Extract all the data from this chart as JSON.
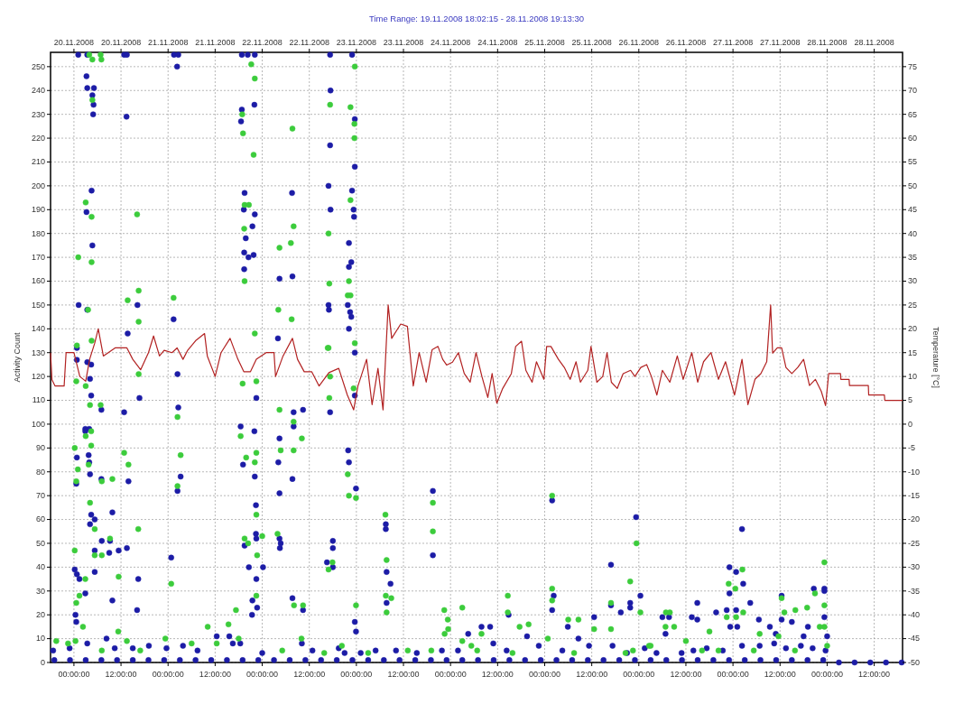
{
  "chart_data": {
    "type": "scatter",
    "title": "Time Range: 19.11.2008 18:02:15 - 28.11.2008 19:13:30",
    "ylabel": "Activity Count",
    "y2label": "Temperature [°C]",
    "xlim": [
      "2008-11-19T18:02:15",
      "2008-11-28T19:13:30"
    ],
    "xticks": [
      {
        "value": "2008-11-20T00:00",
        "label": "00:00:00"
      },
      {
        "value": "2008-11-20T12:00",
        "label": "12:00:00"
      },
      {
        "value": "2008-11-21T00:00",
        "label": "00:00:00"
      },
      {
        "value": "2008-11-21T12:00",
        "label": "12:00:00"
      },
      {
        "value": "2008-11-22T00:00",
        "label": "00:00:00"
      },
      {
        "value": "2008-11-22T12:00",
        "label": "12:00:00"
      },
      {
        "value": "2008-11-23T00:00",
        "label": "00:00:00"
      },
      {
        "value": "2008-11-23T12:00",
        "label": "12:00:00"
      },
      {
        "value": "2008-11-24T00:00",
        "label": "00:00:00"
      },
      {
        "value": "2008-11-24T12:00",
        "label": "12:00:00"
      },
      {
        "value": "2008-11-25T00:00",
        "label": "00:00:00"
      },
      {
        "value": "2008-11-25T12:00",
        "label": "12:00:00"
      },
      {
        "value": "2008-11-26T00:00",
        "label": "00:00:00"
      },
      {
        "value": "2008-11-26T12:00",
        "label": "12:00:00"
      },
      {
        "value": "2008-11-27T00:00",
        "label": "00:00:00"
      },
      {
        "value": "2008-11-27T12:00",
        "label": "12:00:00"
      },
      {
        "value": "2008-11-28T00:00",
        "label": "00:00:00"
      },
      {
        "value": "2008-11-28T12:00",
        "label": "12:00:00"
      }
    ],
    "x2lim": [
      "2008-11-19T18:02:15",
      "2008-11-28T19:13:30"
    ],
    "x2ticks": [
      {
        "value": "2008-11-20T00:00",
        "label": "20.11.2008"
      },
      {
        "value": "2008-11-20T12:00",
        "label": "20.11.2008"
      },
      {
        "value": "2008-11-21T00:00",
        "label": "21.11.2008"
      },
      {
        "value": "2008-11-21T12:00",
        "label": "21.11.2008"
      },
      {
        "value": "2008-11-22T00:00",
        "label": "22.11.2008"
      },
      {
        "value": "2008-11-22T12:00",
        "label": "22.11.2008"
      },
      {
        "value": "2008-11-23T00:00",
        "label": "23.11.2008"
      },
      {
        "value": "2008-11-23T12:00",
        "label": "23.11.2008"
      },
      {
        "value": "2008-11-24T00:00",
        "label": "24.11.2008"
      },
      {
        "value": "2008-11-24T12:00",
        "label": "24.11.2008"
      },
      {
        "value": "2008-11-25T00:00",
        "label": "25.11.2008"
      },
      {
        "value": "2008-11-25T12:00",
        "label": "25.11.2008"
      },
      {
        "value": "2008-11-26T00:00",
        "label": "26.11.2008"
      },
      {
        "value": "2008-11-26T12:00",
        "label": "26.11.2008"
      },
      {
        "value": "2008-11-27T00:00",
        "label": "27.11.2008"
      },
      {
        "value": "2008-11-27T12:00",
        "label": "27.11.2008"
      },
      {
        "value": "2008-11-28T00:00",
        "label": "28.11.2008"
      },
      {
        "value": "2008-11-28T12:00",
        "label": "28.11.2008"
      }
    ],
    "ylim": [
      0,
      256
    ],
    "yticks": [
      0,
      10,
      20,
      30,
      40,
      50,
      60,
      70,
      80,
      90,
      100,
      110,
      120,
      130,
      140,
      150,
      160,
      170,
      180,
      190,
      200,
      210,
      220,
      230,
      240,
      250
    ],
    "y2lim": [
      -50,
      78
    ],
    "y2ticks": [
      -50,
      -45,
      -40,
      -35,
      -30,
      -25,
      -20,
      -15,
      -10,
      -5,
      0,
      5,
      10,
      15,
      20,
      25,
      30,
      35,
      40,
      45,
      50,
      55,
      60,
      65,
      70,
      75
    ],
    "grid": true,
    "marker": "circle",
    "line_style": "solid",
    "series": [
      {
        "color": "#1c1ca6",
        "x": [
          "2008-11-20T01:06",
          "2008-11-20T03:24",
          "2008-11-20T12:48",
          "2008-11-20T13:30",
          "2008-11-21T01:30",
          "2008-11-21T02:36",
          "2008-11-21T18:48",
          "2008-11-21T20:18",
          "2008-11-21T22:06",
          "2008-11-22T17:18",
          "2008-11-22T22:54",
          "2008-11-21T02:18",
          "2008-11-20T03:12",
          "2008-11-20T03:24",
          "2008-11-20T05:06",
          "2008-11-20T04:42",
          "2008-11-20T05:00",
          "2008-11-20T04:54",
          "2008-11-20T13:24",
          "2008-11-21T18:48",
          "2008-11-21T18:36",
          "2008-11-21T22:00",
          "2008-11-22T17:24",
          "2008-11-22T17:18",
          "2008-11-22T23:36",
          "2008-11-22T23:36",
          "2008-11-20T04:30",
          "2008-11-20T03:12",
          "2008-11-21T19:30",
          "2008-11-21T19:18",
          "2008-11-21T22:06",
          "2008-11-21T21:30",
          "2008-11-21T19:48",
          "2008-11-21T19:24",
          "2008-11-21T20:30",
          "2008-11-21T21:48",
          "2008-11-21T19:24",
          "2008-11-20T04:42",
          "2008-11-22T16:54",
          "2008-11-22T17:24",
          "2008-11-22T22:54",
          "2008-11-22T23:18",
          "2008-11-22T23:24",
          "2008-11-22T22:06",
          "2008-11-22T22:06",
          "2008-11-22T22:42",
          "2008-11-22T07:36",
          "2008-11-22T04:24",
          "2008-11-22T07:42",
          "2008-11-20T01:12",
          "2008-11-20T03:24",
          "2008-11-20T16:12",
          "2008-11-21T01:24",
          "2008-11-20T13:42",
          "2008-11-22T16:54",
          "2008-11-22T17:00",
          "2008-11-22T21:48",
          "2008-11-22T22:24",
          "2008-11-22T22:42",
          "2008-11-22T22:06",
          "2008-11-22T04:00",
          "2008-11-20T00:45",
          "2008-11-20T00:45",
          "2008-11-20T03:24",
          "2008-11-20T04:24",
          "2008-11-20T04:06",
          "2008-11-20T04:24",
          "2008-11-20T02:54",
          "2008-11-20T02:54",
          "2008-11-20T03:54",
          "2008-11-20T00:45",
          "2008-11-20T03:45",
          "2008-11-20T03:54",
          "2008-11-20T04:06",
          "2008-11-20T00:36",
          "2008-11-20T07:00",
          "2008-11-20T07:00",
          "2008-11-20T12:48",
          "2008-11-20T13:54",
          "2008-11-20T16:42",
          "2008-11-21T02:24",
          "2008-11-21T02:36",
          "2008-11-21T03:12",
          "2008-11-21T02:24",
          "2008-11-21T18:30",
          "2008-11-21T22:00",
          "2008-11-21T22:06",
          "2008-11-21T19:06",
          "2008-11-21T22:30",
          "2008-11-22T04:24",
          "2008-11-22T04:06",
          "2008-11-22T04:24",
          "2008-11-22T08:00",
          "2008-11-22T08:00",
          "2008-11-22T07:42",
          "2008-11-22T10:24",
          "2008-11-22T17:18",
          "2008-11-22T21:54",
          "2008-11-22T22:06",
          "2008-11-22T23:54",
          "2008-11-22T23:36",
          "2008-11-22T23:36",
          "2008-11-20T00:12",
          "2008-11-20T00:45",
          "2008-11-20T01:24",
          "2008-11-20T00:24",
          "2008-11-20T00:36",
          "2008-11-20T02:54",
          "2008-11-20T04:24",
          "2008-11-20T05:18",
          "2008-11-20T04:06",
          "2008-11-20T05:18",
          "2008-11-20T07:06",
          "2008-11-20T09:12",
          "2008-11-20T09:48",
          "2008-11-20T09:00",
          "2008-11-20T11:24",
          "2008-11-20T13:30",
          "2008-11-20T05:18",
          "2008-11-20T09:48",
          "2008-11-20T16:24",
          "2008-11-20T16:06",
          "2008-11-21T00:48",
          "2008-11-21T20:36",
          "2008-11-21T21:30",
          "2008-11-21T21:24",
          "2008-11-21T22:42",
          "2008-11-21T22:30",
          "2008-11-21T22:24",
          "2008-11-21T22:24",
          "2008-11-21T22:30",
          "2008-11-22T00:12",
          "2008-11-21T19:30",
          "2008-11-22T04:24",
          "2008-11-22T04:42",
          "2008-11-22T04:30",
          "2008-11-22T07:42",
          "2008-11-22T10:24",
          "2008-11-22T18:00",
          "2008-11-22T18:00",
          "2008-11-22T16:30",
          "2008-11-22T18:00",
          "2008-11-22T23:36",
          "2008-11-22T23:54",
          "2008-11-23T07:30",
          "2008-11-23T07:30",
          "2008-11-23T07:42",
          "2008-11-23T08:42",
          "2008-11-23T07:42",
          "2008-11-23T19:30",
          "2008-11-23T19:30",
          "2008-11-25T01:54",
          "2008-11-25T23:18",
          "2008-11-25T16:54",
          "2008-11-26T00:24",
          "2008-11-25T01:54",
          "2008-11-25T02:18",
          "2008-11-25T16:54",
          "2008-11-25T19:24",
          "2008-11-25T21:48",
          "2008-11-25T21:48",
          "2008-11-25T12:36",
          "2008-11-25T05:54",
          "2008-11-24T14:48",
          "2008-11-24T10:06",
          "2008-11-24T07:54",
          "2008-11-24T04:30",
          "2008-11-24T19:30",
          "2008-11-25T08:36",
          "2008-11-27T02:18",
          "2008-11-26T23:06",
          "2008-11-27T00:48",
          "2008-11-27T02:36",
          "2008-11-26T23:06",
          "2008-11-27T20:36",
          "2008-11-27T23:18",
          "2008-11-27T23:18",
          "2008-11-27T12:24",
          "2008-11-27T04:24",
          "2008-11-26T14:54",
          "2008-11-26T06:00",
          "2008-11-26T07:42",
          "2008-11-26T13:30",
          "2008-11-26T14:54",
          "2008-11-26T19:42",
          "2008-11-26T22:24",
          "2008-11-27T00:48",
          "2008-11-27T06:36",
          "2008-11-27T12:24",
          "2008-11-27T23:18",
          "2008-11-26T06:48",
          "2008-11-26T23:18",
          "2008-11-27T01:06",
          "2008-11-27T09:24",
          "2008-11-27T15:00",
          "2008-11-27T19:06",
          "2008-11-27T10:54",
          "2008-11-28T00:00",
          "2008-11-27T18:00",
          "2008-11-19T18:42",
          "2008-11-19T22:54",
          "2008-11-20T03:24",
          "2008-11-20T08:18",
          "2008-11-20T10:24",
          "2008-11-20T15:00",
          "2008-11-20T19:06",
          "2008-11-20T23:36",
          "2008-11-21T03:48",
          "2008-11-21T07:30",
          "2008-11-21T12:24",
          "2008-11-21T15:36",
          "2008-11-21T16:30",
          "2008-11-21T18:24",
          "2008-11-22T00:00",
          "2008-11-22T10:06",
          "2008-11-22T12:48",
          "2008-11-22T19:30",
          "2008-11-22T21:00",
          "2008-11-23T01:06",
          "2008-11-23T04:54",
          "2008-11-23T10:06",
          "2008-11-23T15:24",
          "2008-11-23T21:48",
          "2008-11-24T01:54",
          "2008-11-24T10:54",
          "2008-11-24T14:18",
          "2008-11-24T22:30",
          "2008-11-25T04:30",
          "2008-11-25T11:18",
          "2008-11-25T17:18",
          "2008-11-26T01:30",
          "2008-11-25T21:00",
          "2008-11-26T04:30",
          "2008-11-26T10:54",
          "2008-11-26T13:54",
          "2008-11-26T17:18",
          "2008-11-26T21:24",
          "2008-11-27T02:18",
          "2008-11-27T06:48",
          "2008-11-27T10:30",
          "2008-11-27T13:30",
          "2008-11-27T17:18",
          "2008-11-27T20:18",
          "2008-11-27T23:36",
          "2008-11-19T19:00",
          "2008-11-19T23:00",
          "2008-11-20T03:00",
          "2008-11-20T07:00",
          "2008-11-20T11:00",
          "2008-11-20T15:00",
          "2008-11-20T19:00",
          "2008-11-20T23:00",
          "2008-11-21T03:00",
          "2008-11-21T07:00",
          "2008-11-21T11:00",
          "2008-11-21T15:00",
          "2008-11-21T19:00",
          "2008-11-21T23:00",
          "2008-11-22T03:00",
          "2008-11-22T07:00",
          "2008-11-22T11:00",
          "2008-11-22T15:00",
          "2008-11-22T19:00",
          "2008-11-22T23:00",
          "2008-11-23T03:00",
          "2008-11-23T07:00",
          "2008-11-23T11:00",
          "2008-11-23T15:00",
          "2008-11-23T19:00",
          "2008-11-23T23:00",
          "2008-11-24T03:00",
          "2008-11-24T07:00",
          "2008-11-24T11:00",
          "2008-11-24T15:00",
          "2008-11-24T19:00",
          "2008-11-24T23:00",
          "2008-11-25T03:00",
          "2008-11-25T07:00",
          "2008-11-25T11:00",
          "2008-11-25T15:00",
          "2008-11-25T19:00",
          "2008-11-25T23:00",
          "2008-11-26T03:00",
          "2008-11-26T07:00",
          "2008-11-26T11:00",
          "2008-11-26T15:00",
          "2008-11-26T19:00",
          "2008-11-26T23:00",
          "2008-11-27T03:00",
          "2008-11-27T07:00",
          "2008-11-27T11:00",
          "2008-11-27T15:00",
          "2008-11-27T19:00",
          "2008-11-27T23:00",
          "2008-11-28T03:00",
          "2008-11-28T07:00",
          "2008-11-28T11:00",
          "2008-11-28T15:00",
          "2008-11-28T19:00"
        ],
        "values": [
          255,
          255,
          255,
          255,
          255,
          255,
          255,
          255,
          255,
          255,
          255,
          250,
          246,
          241,
          241,
          238,
          234,
          230,
          229,
          232,
          227,
          234,
          240,
          217,
          228,
          208,
          198,
          189,
          197,
          190,
          188,
          183,
          178,
          172,
          170,
          171,
          165,
          175,
          200,
          190,
          198,
          190,
          187,
          176,
          166,
          168,
          197,
          161,
          162,
          150,
          148,
          150,
          144,
          138,
          150,
          148,
          150,
          147,
          145,
          140,
          136,
          132,
          127,
          126,
          125,
          119,
          112,
          98,
          97,
          98,
          86,
          87,
          84,
          79,
          75,
          106,
          77,
          105,
          76,
          111,
          121,
          107,
          78,
          72,
          99,
          97,
          78,
          83,
          111,
          94,
          84,
          71,
          105,
          99,
          77,
          106,
          105,
          89,
          84,
          73,
          112,
          130,
          39,
          37,
          35,
          20,
          17,
          29,
          62,
          60,
          58,
          47,
          51,
          51,
          63,
          46,
          47,
          48,
          38,
          26,
          35,
          22,
          44,
          40,
          26,
          20,
          23,
          35,
          66,
          54,
          52,
          40,
          49,
          52,
          50,
          48,
          27,
          22,
          51,
          48,
          42,
          40,
          17,
          13,
          58,
          56,
          38,
          33,
          25,
          72,
          45,
          68,
          61,
          41,
          28,
          22,
          28,
          24,
          21,
          25,
          23,
          19,
          15,
          20,
          15,
          15,
          12,
          11,
          10,
          56,
          40,
          38,
          33,
          29,
          31,
          31,
          30,
          28,
          25,
          25,
          19,
          19,
          19,
          18,
          21,
          22,
          22,
          18,
          18,
          19,
          12,
          15,
          15,
          15,
          17,
          15,
          12,
          11,
          11,
          5,
          6,
          8,
          10,
          6,
          6,
          7,
          6,
          7,
          5,
          11,
          11,
          8,
          8,
          4,
          8,
          5,
          6,
          4,
          4,
          5,
          5,
          4,
          5,
          5,
          8,
          5,
          7,
          5,
          7,
          7,
          6,
          4,
          4,
          4,
          5,
          6,
          5,
          7,
          7,
          8,
          6,
          7,
          6,
          5,
          1,
          1,
          1,
          1,
          1,
          1,
          1,
          1,
          1,
          1,
          1,
          1,
          1,
          1,
          1,
          1,
          1,
          1,
          1,
          1,
          1,
          1,
          1,
          1,
          1,
          1,
          1,
          1,
          1,
          1,
          1,
          1,
          1,
          1,
          1,
          1,
          1,
          1,
          1,
          1,
          1,
          1,
          1,
          1,
          1,
          1,
          1,
          1,
          1,
          1,
          0,
          0,
          0,
          0,
          0
        ]
      },
      {
        "color": "#3ccc3c",
        "x": [
          "2008-11-20T03:54",
          "2008-11-20T06:48",
          "2008-11-20T04:42",
          "2008-11-20T07:00",
          "2008-11-20T04:42",
          "2008-11-21T21:12",
          "2008-11-21T22:06",
          "2008-11-21T18:54",
          "2008-11-21T19:06",
          "2008-11-21T21:48",
          "2008-11-22T17:18",
          "2008-11-22T22:30",
          "2008-11-22T23:30",
          "2008-11-22T23:30",
          "2008-11-22T23:36",
          "2008-11-22T07:42",
          "2008-11-20T03:00",
          "2008-11-20T04:30",
          "2008-11-20T16:06",
          "2008-11-21T19:30",
          "2008-11-21T20:36",
          "2008-11-21T19:24",
          "2008-11-22T08:00",
          "2008-11-22T07:18",
          "2008-11-22T04:24",
          "2008-11-21T19:30",
          "2008-11-22T16:54",
          "2008-11-22T17:06",
          "2008-11-22T22:30",
          "2008-11-22T22:06",
          "2008-11-22T21:48",
          "2008-11-22T22:30",
          "2008-11-20T01:06",
          "2008-11-20T04:30",
          "2008-11-20T03:36",
          "2008-11-20T13:42",
          "2008-11-20T16:30",
          "2008-11-20T16:30",
          "2008-11-21T01:24",
          "2008-11-22T04:06",
          "2008-11-22T07:30",
          "2008-11-20T04:30",
          "2008-11-21T22:06",
          "2008-11-22T16:54",
          "2008-11-20T00:45",
          "2008-11-20T00:36",
          "2008-11-20T03:00",
          "2008-11-20T04:06",
          "2008-11-20T06:48",
          "2008-11-20T03:00",
          "2008-11-20T04:24",
          "2008-11-20T04:24",
          "2008-11-20T03:45",
          "2008-11-20T00:12",
          "2008-11-20T01:00",
          "2008-11-20T00:36",
          "2008-11-20T07:06",
          "2008-11-20T09:48",
          "2008-11-20T12:48",
          "2008-11-20T13:54",
          "2008-11-20T16:30",
          "2008-11-21T02:24",
          "2008-11-21T03:12",
          "2008-11-21T02:24",
          "2008-11-21T18:30",
          "2008-11-21T19:54",
          "2008-11-21T22:06",
          "2008-11-21T22:30",
          "2008-11-21T19:00",
          "2008-11-21T22:30",
          "2008-11-22T04:24",
          "2008-11-22T04:42",
          "2008-11-22T08:00",
          "2008-11-22T08:00",
          "2008-11-22T10:06",
          "2008-11-22T17:06",
          "2008-11-22T21:48",
          "2008-11-22T22:06",
          "2008-11-22T23:54",
          "2008-11-22T16:42",
          "2008-11-22T17:18",
          "2008-11-20T00:12",
          "2008-11-20T00:36",
          "2008-11-20T01:24",
          "2008-11-20T02:54",
          "2008-11-20T04:06",
          "2008-11-20T05:18",
          "2008-11-20T05:18",
          "2008-11-20T07:06",
          "2008-11-20T09:12",
          "2008-11-20T11:24",
          "2008-11-20T16:24",
          "2008-11-21T00:48",
          "2008-11-21T19:30",
          "2008-11-21T20:24",
          "2008-11-21T22:42",
          "2008-11-21T22:30",
          "2008-11-22T00:00",
          "2008-11-21T22:30",
          "2008-11-22T03:54",
          "2008-11-22T08:06",
          "2008-11-22T10:24",
          "2008-11-22T16:54",
          "2008-11-22T17:54",
          "2008-11-22T23:54",
          "2008-11-21T17:18",
          "2008-11-20T02:18",
          "2008-11-20T00:24",
          "2008-11-20T11:18",
          "2008-11-21T10:06",
          "2008-11-21T15:24",
          "2008-11-22T23:36",
          "2008-11-22T23:18",
          "2008-11-23T07:24",
          "2008-11-23T07:42",
          "2008-11-23T07:30",
          "2008-11-23T08:54",
          "2008-11-23T07:42",
          "2008-11-23T19:30",
          "2008-11-23T19:30",
          "2008-11-25T01:54",
          "2008-11-25T23:24",
          "2008-11-25T21:48",
          "2008-11-25T01:54",
          "2008-11-25T01:54",
          "2008-11-25T16:54",
          "2008-11-25T16:54",
          "2008-11-26T00:24",
          "2008-11-23T22:24",
          "2008-11-24T03:00",
          "2008-11-23T23:18",
          "2008-11-23T23:24",
          "2008-11-23T22:30",
          "2008-11-24T14:36",
          "2008-11-24T14:36",
          "2008-11-24T07:54",
          "2008-11-24T03:00",
          "2008-11-24T17:36",
          "2008-11-24T19:54",
          "2008-11-25T06:00",
          "2008-11-25T08:36",
          "2008-11-25T12:36",
          "2008-11-24T05:18",
          "2008-11-26T06:54",
          "2008-11-26T07:54",
          "2008-11-26T06:48",
          "2008-11-26T09:00",
          "2008-11-26T18:00",
          "2008-11-26T22:54",
          "2008-11-27T00:36",
          "2008-11-27T02:24",
          "2008-11-27T02:36",
          "2008-11-26T22:24",
          "2008-11-27T00:48",
          "2008-11-27T12:24",
          "2008-11-27T13:06",
          "2008-11-27T15:54",
          "2008-11-27T18:54",
          "2008-11-27T20:54",
          "2008-11-27T23:18",
          "2008-11-27T23:18",
          "2008-11-27T23:18",
          "2008-11-27T22:06",
          "2008-11-27T06:48",
          "2008-11-27T11:36",
          "2008-11-26T12:00",
          "2008-11-26T02:36",
          "2008-11-19T19:30",
          "2008-11-19T22:30",
          "2008-11-20T07:06",
          "2008-11-20T13:30",
          "2008-11-20T16:54",
          "2008-11-20T23:18",
          "2008-11-21T06:00",
          "2008-11-21T12:24",
          "2008-11-21T18:00",
          "2008-11-22T05:06",
          "2008-11-22T10:00",
          "2008-11-22T15:48",
          "2008-11-22T20:18",
          "2008-11-23T03:00",
          "2008-11-23T13:06",
          "2008-11-23T19:06",
          "2008-11-24T06:48",
          "2008-11-24T15:48",
          "2008-11-25T00:48",
          "2008-11-25T07:30",
          "2008-11-25T20:36",
          "2008-11-26T03:00",
          "2008-11-25T22:30",
          "2008-11-26T16:06",
          "2008-11-26T20:18",
          "2008-11-27T05:18",
          "2008-11-27T15:48",
          "2008-11-28T00:00"
        ],
        "values": [
          255,
          255,
          253,
          253,
          236,
          251,
          245,
          230,
          222,
          213,
          234,
          233,
          226,
          220,
          250,
          224,
          193,
          187,
          188,
          192,
          192,
          182,
          183,
          176,
          174,
          160,
          180,
          159,
          194,
          160,
          154,
          154,
          170,
          168,
          148,
          152,
          156,
          143,
          153,
          148,
          144,
          135,
          138,
          132,
          133,
          118,
          116,
          108,
          108,
          95,
          97,
          91,
          83,
          90,
          81,
          76,
          76,
          77,
          88,
          83,
          121,
          103,
          87,
          74,
          95,
          86,
          84,
          88,
          117,
          118,
          106,
          89,
          101,
          89,
          94,
          111,
          79,
          70,
          69,
          132,
          120,
          47,
          25,
          28,
          35,
          67,
          56,
          45,
          45,
          52,
          36,
          56,
          33,
          52,
          50,
          45,
          62,
          53,
          28,
          54,
          24,
          24,
          39,
          42,
          24,
          22,
          15,
          9,
          13,
          15,
          16,
          134,
          115,
          62,
          43,
          28,
          27,
          21,
          67,
          55,
          70,
          50,
          34,
          31,
          26,
          25,
          14,
          21,
          22,
          23,
          18,
          14,
          12,
          28,
          21,
          12,
          9,
          15,
          16,
          18,
          18,
          14,
          7,
          21,
          21,
          15,
          15,
          13,
          33,
          31,
          39,
          21,
          19,
          19,
          27,
          21,
          22,
          23,
          29,
          42,
          24,
          15,
          15,
          12,
          11,
          9,
          7,
          9,
          8,
          5,
          9,
          5,
          10,
          8,
          8,
          10,
          5,
          10,
          4,
          7,
          4,
          5,
          5,
          5,
          4,
          10,
          4,
          4,
          7,
          5,
          5,
          5,
          5,
          5,
          7
        ]
      },
      {
        "type": "line",
        "marker": "none",
        "axis": "y2",
        "color": "#b22222",
        "x": [
          "2008-11-19T18:02:15",
          "2008-11-19T18:24",
          "2008-11-19T19:12",
          "2008-11-19T21:30",
          "2008-11-19T22:00",
          "2008-11-20T00:00",
          "2008-11-20T01:30",
          "2008-11-20T03:00",
          "2008-11-20T04:00",
          "2008-11-20T05:18",
          "2008-11-20T06:12",
          "2008-11-20T07:30",
          "2008-11-20T10:30",
          "2008-11-20T13:30",
          "2008-11-20T15:00",
          "2008-11-20T17:00",
          "2008-11-20T19:00",
          "2008-11-20T20:18",
          "2008-11-20T21:48",
          "2008-11-20T23:00",
          "2008-11-21T01:00",
          "2008-11-21T02:18",
          "2008-11-21T03:48",
          "2008-11-21T05:00",
          "2008-11-21T07:00",
          "2008-11-21T09:18",
          "2008-11-21T10:00",
          "2008-11-21T12:00",
          "2008-11-21T13:30",
          "2008-11-21T15:48",
          "2008-11-21T17:48",
          "2008-11-21T19:18",
          "2008-11-21T21:00",
          "2008-11-21T22:30",
          "2008-11-22T01:00",
          "2008-11-22T03:00",
          "2008-11-22T03:24",
          "2008-11-22T05:18",
          "2008-11-22T07:42",
          "2008-11-22T09:00",
          "2008-11-22T10:42",
          "2008-11-22T12:36",
          "2008-11-22T14:30",
          "2008-11-22T17:00",
          "2008-11-22T19:30",
          "2008-11-22T21:42",
          "2008-11-22T23:18",
          "2008-11-23T00:24",
          "2008-11-23T02:36",
          "2008-11-23T04:00",
          "2008-11-23T05:30",
          "2008-11-23T06:48",
          "2008-11-23T08:06",
          "2008-11-23T09:00",
          "2008-11-23T11:18",
          "2008-11-23T13:00",
          "2008-11-23T14:30",
          "2008-11-23T16:00",
          "2008-11-23T17:48",
          "2008-11-23T19:18",
          "2008-11-23T20:48",
          "2008-11-23T22:00",
          "2008-11-23T23:00",
          "2008-11-24T00:30",
          "2008-11-24T02:00",
          "2008-11-24T03:30",
          "2008-11-24T05:00",
          "2008-11-24T06:30",
          "2008-11-24T08:00",
          "2008-11-24T09:30",
          "2008-11-24T10:36",
          "2008-11-24T11:48",
          "2008-11-24T13:18",
          "2008-11-24T15:30",
          "2008-11-24T16:36",
          "2008-11-24T18:06",
          "2008-11-24T19:12",
          "2008-11-24T20:48",
          "2008-11-24T21:54",
          "2008-11-24T23:48",
          "2008-11-25T00:30",
          "2008-11-25T01:36",
          "2008-11-25T03:30",
          "2008-11-25T05:00",
          "2008-11-25T06:30",
          "2008-11-25T08:00",
          "2008-11-25T09:06",
          "2008-11-25T11:00",
          "2008-11-25T11:48",
          "2008-11-25T13:18",
          "2008-11-25T14:48",
          "2008-11-25T15:54",
          "2008-11-25T17:00",
          "2008-11-25T18:30",
          "2008-11-25T20:00",
          "2008-11-25T21:54",
          "2008-11-25T23:00",
          "2008-11-26T00:30",
          "2008-11-26T02:00",
          "2008-11-26T03:12",
          "2008-11-26T04:36",
          "2008-11-26T06:00",
          "2008-11-26T07:54",
          "2008-11-26T09:48",
          "2008-11-26T11:18",
          "2008-11-26T13:30",
          "2008-11-26T15:00",
          "2008-11-26T16:30",
          "2008-11-26T18:24",
          "2008-11-26T20:18",
          "2008-11-26T22:06",
          "2008-11-27T00:24",
          "2008-11-27T02:18",
          "2008-11-27T03:48",
          "2008-11-27T05:36",
          "2008-11-27T07:06",
          "2008-11-27T08:36",
          "2008-11-27T09:36",
          "2008-11-27T10:06",
          "2008-11-27T11:18",
          "2008-11-27T12:24",
          "2008-11-27T13:30",
          "2008-11-27T15:00",
          "2008-11-27T16:30",
          "2008-11-27T18:00",
          "2008-11-27T19:30",
          "2008-11-27T21:00",
          "2008-11-27T22:30",
          "2008-11-27T23:36",
          "2008-11-28T00:24",
          "2008-11-28T03:24",
          "2008-11-28T03:30",
          "2008-11-28T05:36",
          "2008-11-28T05:42",
          "2008-11-28T10:30",
          "2008-11-28T10:36",
          "2008-11-28T14:36",
          "2008-11-28T14:42",
          "2008-11-28T19:13"
        ],
        "values": [
          15,
          9.3,
          8,
          8,
          15,
          15,
          10,
          9,
          13.6,
          17,
          20,
          14.3,
          16,
          16,
          13.6,
          11.4,
          15,
          18.5,
          14.3,
          15.5,
          15,
          16,
          13.6,
          15.5,
          17.5,
          19,
          14.3,
          10,
          15,
          18,
          13.6,
          11,
          11,
          13.6,
          15,
          15,
          10,
          14.3,
          18,
          13.6,
          11,
          11,
          8,
          10.8,
          11.7,
          6.1,
          3,
          8,
          13.6,
          4.1,
          11.7,
          3,
          25,
          18,
          21,
          20.5,
          8,
          15,
          8.8,
          15.6,
          16.3,
          13.6,
          12.4,
          13,
          15,
          10.6,
          8.8,
          15,
          10,
          5.6,
          10.6,
          4.4,
          7.5,
          10.6,
          16.3,
          17.4,
          11.3,
          8.8,
          13.1,
          9.4,
          16.3,
          16.3,
          13.6,
          11.9,
          9.4,
          13.1,
          8.8,
          11.3,
          16.3,
          8.8,
          10,
          15,
          8.8,
          7.5,
          10.6,
          11.3,
          10,
          11.9,
          12.5,
          10,
          6.1,
          11.3,
          8.8,
          14.3,
          9.4,
          15,
          8.8,
          13.1,
          15,
          9.4,
          13.1,
          6.1,
          13.6,
          4.1,
          9.4,
          10.6,
          13.1,
          25,
          14.9,
          16,
          16,
          11.9,
          10.6,
          11.9,
          13.6,
          8.1,
          9.4,
          6.9,
          3.9,
          10.6,
          10.6,
          9.4,
          9.4,
          8.1,
          8.1,
          6.1,
          6.1,
          5,
          5
        ]
      }
    ]
  }
}
